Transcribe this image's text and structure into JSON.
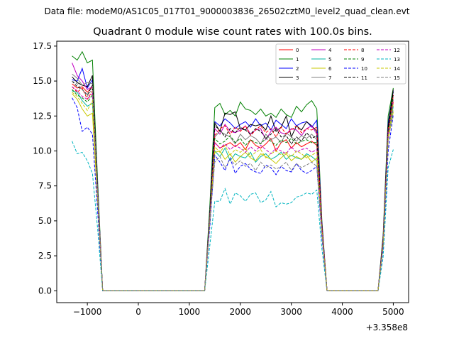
{
  "header": {
    "data_file": "Data file: modeM0/AS1C05_017T01_9000003836_26502cztM0_level2_quad_clean.evt"
  },
  "chart_data": {
    "type": "line",
    "title": "Quadrant 0 module wise count rates with 100.0s bins.",
    "xlabel": "",
    "ylabel": "",
    "x_offset_label": "+3.358e8",
    "xlim": [
      -1600,
      5300
    ],
    "ylim": [
      -0.85,
      17.85
    ],
    "xticks": [
      -1000,
      0,
      1000,
      2000,
      3000,
      4000,
      5000
    ],
    "xtick_labels": [
      "−1000",
      "0",
      "1000",
      "2000",
      "3000",
      "4000",
      "5000"
    ],
    "yticks": [
      0,
      2.5,
      5,
      7.5,
      10,
      12.5,
      15,
      17.5
    ],
    "ytick_labels": [
      "0.0",
      "2.5",
      "5.0",
      "7.5",
      "10.0",
      "12.5",
      "15.0",
      "17.5"
    ],
    "grid": false,
    "legend_position": "top-right",
    "x": [
      -1300,
      -1200,
      -1100,
      -1000,
      -900,
      -800,
      -700,
      -600,
      -500,
      -400,
      -300,
      -200,
      -100,
      0,
      100,
      200,
      300,
      400,
      500,
      600,
      700,
      800,
      900,
      1000,
      1100,
      1200,
      1300,
      1400,
      1500,
      1600,
      1700,
      1800,
      1900,
      2000,
      2100,
      2200,
      2300,
      2400,
      2500,
      2600,
      2700,
      2800,
      2900,
      3000,
      3100,
      3200,
      3300,
      3400,
      3500,
      3600,
      3700,
      3800,
      3900,
      4000,
      4100,
      4200,
      4300,
      4400,
      4500,
      4600,
      4700,
      4800,
      4900,
      5000
    ],
    "series": [
      {
        "name": "0",
        "color": "#ff0000",
        "dash": "solid",
        "values": [
          14.8,
          14.5,
          14.6,
          14.2,
          14.6,
          7.0,
          0.0,
          0,
          0,
          0,
          0,
          0,
          0,
          0,
          0,
          0,
          0,
          0,
          0,
          0,
          0,
          0,
          0,
          0,
          0,
          0,
          0,
          5.0,
          10.6,
          10.2,
          10.4,
          10.6,
          10.3,
          10.6,
          10.1,
          10.8,
          10.4,
          10.2,
          10.5,
          10.9,
          10.0,
          10.6,
          10.8,
          10.2,
          10.6,
          10.3,
          10.5,
          10.7,
          10.4,
          4.5,
          0.0,
          0,
          0,
          0,
          0,
          0,
          0,
          0,
          0,
          0,
          0,
          3.5,
          11.0,
          13.5
        ]
      },
      {
        "name": "1",
        "color": "#008000",
        "dash": "solid",
        "values": [
          16.8,
          16.5,
          17.1,
          16.3,
          16.5,
          8.0,
          0.0,
          0,
          0,
          0,
          0,
          0,
          0,
          0,
          0,
          0,
          0,
          0,
          0,
          0,
          0,
          0,
          0,
          0,
          0,
          0,
          0,
          6.0,
          13.1,
          13.4,
          12.6,
          12.9,
          12.5,
          13.5,
          13.0,
          12.9,
          12.6,
          13.0,
          12.5,
          12.7,
          12.4,
          13.0,
          12.6,
          12.4,
          13.2,
          12.8,
          13.3,
          13.6,
          13.0,
          5.0,
          0.0,
          0,
          0,
          0,
          0,
          0,
          0,
          0,
          0,
          0,
          0,
          4.0,
          12.5,
          14.5
        ]
      },
      {
        "name": "2",
        "color": "#0000ff",
        "dash": "solid",
        "values": [
          15.1,
          15.0,
          15.9,
          14.5,
          15.1,
          7.5,
          0.0,
          0,
          0,
          0,
          0,
          0,
          0,
          0,
          0,
          0,
          0,
          0,
          0,
          0,
          0,
          0,
          0,
          0,
          0,
          0,
          0,
          5.5,
          12.1,
          11.8,
          12.3,
          12.0,
          11.6,
          11.9,
          12.1,
          11.7,
          12.3,
          11.8,
          12.0,
          11.5,
          12.2,
          11.9,
          11.6,
          12.3,
          11.8,
          12.0,
          12.1,
          11.7,
          12.2,
          4.8,
          0.0,
          0,
          0,
          0,
          0,
          0,
          0,
          0,
          0,
          0,
          0,
          3.8,
          12.0,
          14.3
        ]
      },
      {
        "name": "3",
        "color": "#000000",
        "dash": "solid",
        "values": [
          15.3,
          14.9,
          14.7,
          14.6,
          15.4,
          7.5,
          0.0,
          0,
          0,
          0,
          0,
          0,
          0,
          0,
          0,
          0,
          0,
          0,
          0,
          0,
          0,
          0,
          0,
          0,
          0,
          0,
          0,
          5.5,
          12.0,
          11.4,
          12.7,
          12.6,
          12.8,
          11.6,
          11.5,
          11.9,
          11.8,
          11.9,
          11.5,
          12.5,
          11.4,
          11.7,
          12.5,
          11.0,
          11.8,
          11.5,
          12.1,
          11.8,
          11.4,
          4.7,
          0.0,
          0,
          0,
          0,
          0,
          0,
          0,
          0,
          0,
          0,
          0,
          3.7,
          11.8,
          14.4
        ]
      },
      {
        "name": "4",
        "color": "#c000c0",
        "dash": "solid",
        "values": [
          16.3,
          15.4,
          15.0,
          14.4,
          14.6,
          7.2,
          0.0,
          0,
          0,
          0,
          0,
          0,
          0,
          0,
          0,
          0,
          0,
          0,
          0,
          0,
          0,
          0,
          0,
          0,
          0,
          0,
          0,
          5.2,
          11.6,
          11.2,
          11.9,
          11.4,
          11.3,
          11.5,
          11.8,
          11.2,
          11.5,
          11.6,
          10.8,
          11.4,
          11.7,
          11.3,
          11.2,
          11.6,
          11.5,
          11.1,
          11.6,
          11.8,
          11.2,
          4.6,
          0.0,
          0,
          0,
          0,
          0,
          0,
          0,
          0,
          0,
          0,
          0,
          3.6,
          11.5,
          14.0
        ]
      },
      {
        "name": "5",
        "color": "#00b5a0",
        "dash": "solid",
        "values": [
          14.3,
          14.2,
          13.6,
          13.2,
          13.4,
          6.8,
          0.0,
          0,
          0,
          0,
          0,
          0,
          0,
          0,
          0,
          0,
          0,
          0,
          0,
          0,
          0,
          0,
          0,
          0,
          0,
          0,
          0,
          5.0,
          10.0,
          9.6,
          10.2,
          9.3,
          9.8,
          9.6,
          9.5,
          9.9,
          9.2,
          9.6,
          9.8,
          9.4,
          9.6,
          9.9,
          9.4,
          9.7,
          9.5,
          9.4,
          9.8,
          9.6,
          9.3,
          4.3,
          0.0,
          0,
          0,
          0,
          0,
          0,
          0,
          0,
          0,
          0,
          0,
          3.4,
          11.0,
          13.2
        ]
      },
      {
        "name": "6",
        "color": "#c8c800",
        "dash": "solid",
        "values": [
          14.1,
          13.7,
          13.0,
          12.5,
          12.7,
          6.5,
          0.0,
          0,
          0,
          0,
          0,
          0,
          0,
          0,
          0,
          0,
          0,
          0,
          0,
          0,
          0,
          0,
          0,
          0,
          0,
          0,
          0,
          4.8,
          9.9,
          10.0,
          9.4,
          9.8,
          9.2,
          9.6,
          9.9,
          9.5,
          9.3,
          9.8,
          9.6,
          9.4,
          9.1,
          9.5,
          9.8,
          9.3,
          9.6,
          9.4,
          9.7,
          9.2,
          9.5,
          4.2,
          0.0,
          0,
          0,
          0,
          0,
          0,
          0,
          0,
          0,
          0,
          0,
          3.3,
          10.8,
          12.8
        ]
      },
      {
        "name": "7",
        "color": "#808080",
        "dash": "solid",
        "values": [
          15.5,
          15.2,
          14.7,
          14.9,
          14.8,
          7.3,
          0.0,
          0,
          0,
          0,
          0,
          0,
          0,
          0,
          0,
          0,
          0,
          0,
          0,
          0,
          0,
          0,
          0,
          0,
          0,
          0,
          0,
          5.4,
          11.0,
          11.4,
          11.2,
          11.0,
          10.5,
          11.2,
          10.8,
          11.1,
          10.9,
          10.5,
          11.2,
          10.8,
          11.0,
          10.6,
          11.3,
          11.0,
          10.7,
          11.1,
          10.9,
          11.2,
          10.8,
          4.5,
          0.0,
          0,
          0,
          0,
          0,
          0,
          0,
          0,
          0,
          0,
          0,
          3.5,
          11.2,
          14.0
        ]
      },
      {
        "name": "8",
        "color": "#ff0000",
        "dash": "dashed",
        "values": [
          14.6,
          14.2,
          14.5,
          13.7,
          14.3,
          7.0,
          0.0,
          0,
          0,
          0,
          0,
          0,
          0,
          0,
          0,
          0,
          0,
          0,
          0,
          0,
          0,
          0,
          0,
          0,
          0,
          0,
          0,
          5.2,
          11.1,
          11.6,
          11.8,
          11.2,
          11.7,
          11.4,
          11.8,
          11.1,
          11.5,
          11.8,
          11.3,
          11.6,
          11.0,
          11.7,
          11.2,
          11.5,
          11.8,
          11.3,
          11.6,
          11.5,
          11.7,
          4.6,
          0.0,
          0,
          0,
          0,
          0,
          0,
          0,
          0,
          0,
          0,
          0,
          3.6,
          11.5,
          14.0
        ]
      },
      {
        "name": "9",
        "color": "#008000",
        "dash": "dashed",
        "values": [
          14.4,
          14.0,
          13.8,
          13.5,
          14.0,
          6.9,
          0.0,
          0,
          0,
          0,
          0,
          0,
          0,
          0,
          0,
          0,
          0,
          0,
          0,
          0,
          0,
          0,
          0,
          0,
          0,
          0,
          0,
          5.1,
          10.9,
          10.5,
          10.7,
          11.1,
          10.6,
          10.9,
          10.4,
          10.8,
          10.6,
          10.5,
          10.9,
          10.7,
          10.4,
          10.8,
          10.6,
          10.9,
          10.5,
          10.7,
          10.8,
          10.6,
          10.6,
          4.4,
          0.0,
          0,
          0,
          0,
          0,
          0,
          0,
          0,
          0,
          0,
          0,
          3.5,
          11.3,
          13.8
        ]
      },
      {
        "name": "10",
        "color": "#0000ff",
        "dash": "dashed",
        "values": [
          13.8,
          13.1,
          11.4,
          11.7,
          11.2,
          5.8,
          0.0,
          0,
          0,
          0,
          0,
          0,
          0,
          0,
          0,
          0,
          0,
          0,
          0,
          0,
          0,
          0,
          0,
          0,
          0,
          0,
          0,
          4.5,
          9.7,
          9.2,
          8.6,
          9.5,
          8.4,
          8.9,
          9.1,
          8.7,
          8.5,
          8.4,
          9.0,
          8.8,
          8.3,
          8.9,
          8.6,
          8.5,
          9.1,
          8.6,
          8.4,
          8.6,
          8.9,
          3.8,
          0.0,
          0,
          0,
          0,
          0,
          0,
          0,
          0,
          0,
          0,
          0,
          3.0,
          10.0,
          12.6
        ]
      },
      {
        "name": "11",
        "color": "#000000",
        "dash": "dashed",
        "values": [
          15.0,
          14.6,
          14.4,
          14.0,
          14.7,
          7.2,
          0.0,
          0,
          0,
          0,
          0,
          0,
          0,
          0,
          0,
          0,
          0,
          0,
          0,
          0,
          0,
          0,
          0,
          0,
          0,
          0,
          0,
          5.4,
          11.8,
          11.5,
          11.0,
          11.6,
          11.3,
          11.7,
          11.5,
          11.2,
          11.6,
          11.4,
          10.9,
          11.2,
          11.6,
          11.0,
          11.1,
          10.5,
          11.0,
          10.7,
          11.3,
          10.9,
          11.1,
          4.6,
          0.0,
          0,
          0,
          0,
          0,
          0,
          0,
          0,
          0,
          0,
          0,
          3.6,
          11.6,
          14.2
        ]
      },
      {
        "name": "12",
        "color": "#c000c0",
        "dash": "dashed",
        "values": [
          14.6,
          14.3,
          13.9,
          13.7,
          14.1,
          6.9,
          0.0,
          0,
          0,
          0,
          0,
          0,
          0,
          0,
          0,
          0,
          0,
          0,
          0,
          0,
          0,
          0,
          0,
          0,
          0,
          0,
          0,
          5.1,
          10.6,
          10.2,
          10.5,
          10.1,
          10.4,
          10.2,
          9.9,
          10.3,
          10.0,
          10.4,
          10.1,
          9.8,
          10.2,
          10.0,
          9.8,
          10.3,
          9.9,
          10.1,
          10.2,
          9.9,
          10.1,
          4.4,
          0.0,
          0,
          0,
          0,
          0,
          0,
          0,
          0,
          0,
          0,
          0,
          3.4,
          11.2,
          13.6
        ]
      },
      {
        "name": "13",
        "color": "#00b5c0",
        "dash": "dashed",
        "values": [
          10.7,
          9.8,
          9.9,
          9.3,
          8.4,
          4.5,
          0.0,
          0,
          0,
          0,
          0,
          0,
          0,
          0,
          0,
          0,
          0,
          0,
          0,
          0,
          0,
          0,
          0,
          0,
          0,
          0,
          0,
          3.2,
          6.4,
          6.4,
          7.3,
          6.2,
          7.0,
          6.8,
          6.4,
          6.9,
          7.0,
          6.3,
          6.5,
          7.1,
          6.0,
          6.3,
          6.2,
          6.3,
          6.7,
          6.8,
          7.0,
          6.9,
          7.2,
          3.0,
          0.0,
          0,
          0,
          0,
          0,
          0,
          0,
          0,
          0,
          0,
          0,
          2.4,
          8.8,
          10.1
        ]
      },
      {
        "name": "14",
        "color": "#c8c800",
        "dash": "dashed",
        "values": [
          14.2,
          13.9,
          13.4,
          12.9,
          13.6,
          6.7,
          0.0,
          0,
          0,
          0,
          0,
          0,
          0,
          0,
          0,
          0,
          0,
          0,
          0,
          0,
          0,
          0,
          0,
          0,
          0,
          0,
          0,
          4.9,
          10.3,
          9.9,
          10.4,
          9.7,
          10.1,
          9.9,
          10.2,
          9.6,
          9.9,
          10.1,
          9.5,
          9.8,
          10.0,
          9.7,
          9.9,
          9.6,
          10.0,
          9.8,
          9.5,
          9.7,
          9.9,
          4.3,
          0.0,
          0,
          0,
          0,
          0,
          0,
          0,
          0,
          0,
          0,
          0,
          3.3,
          11.0,
          13.4
        ]
      },
      {
        "name": "15",
        "color": "#808080",
        "dash": "dashed",
        "values": [
          15.0,
          14.8,
          14.4,
          13.9,
          14.5,
          7.1,
          0.0,
          0,
          0,
          0,
          0,
          0,
          0,
          0,
          0,
          0,
          0,
          0,
          0,
          0,
          0,
          0,
          0,
          0,
          0,
          0,
          0,
          5.0,
          9.2,
          9.6,
          8.8,
          9.4,
          9.0,
          9.3,
          8.9,
          9.1,
          8.6,
          9.2,
          8.8,
          9.0,
          8.7,
          8.9,
          9.2,
          8.6,
          9.1,
          8.8,
          9.0,
          9.2,
          8.9,
          4.0,
          0.0,
          0,
          0,
          0,
          0,
          0,
          0,
          0,
          0,
          0,
          0,
          3.2,
          10.8,
          13.0
        ]
      }
    ]
  }
}
